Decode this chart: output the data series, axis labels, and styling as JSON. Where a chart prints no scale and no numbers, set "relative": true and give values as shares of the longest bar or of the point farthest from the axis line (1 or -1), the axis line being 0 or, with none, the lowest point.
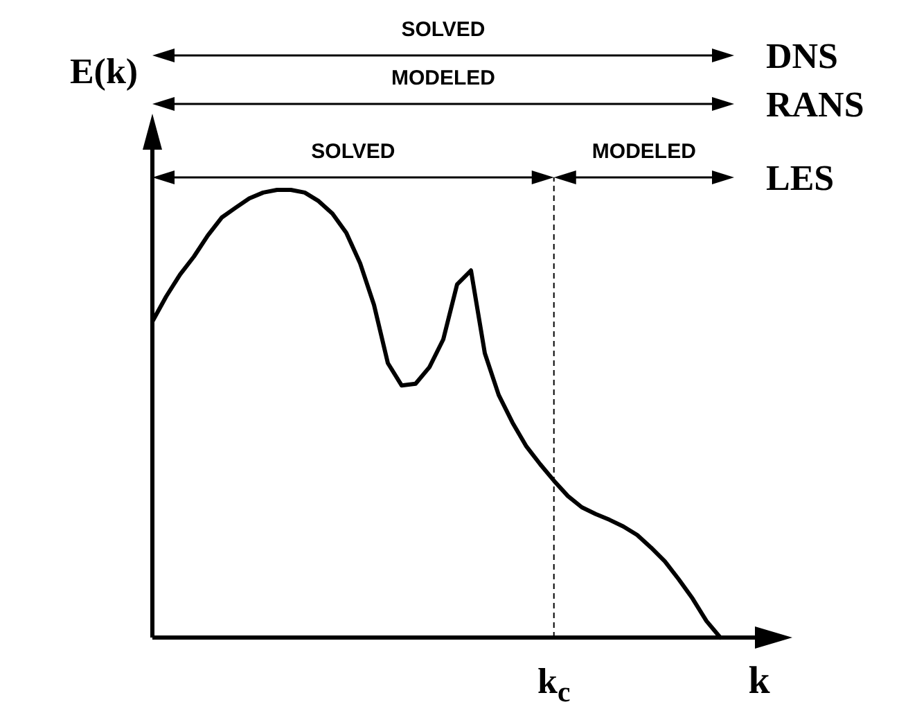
{
  "chart_data": {
    "type": "line",
    "relative": true,
    "xlabel": "k",
    "ylabel": "E(k)",
    "categories": [
      null,
      null,
      null,
      null,
      null,
      null,
      null,
      null,
      null,
      null,
      null,
      null,
      null,
      null,
      null,
      null,
      null,
      null,
      null,
      null,
      null,
      null,
      null,
      null,
      null,
      null,
      null,
      null,
      null,
      null,
      null,
      null,
      null,
      null,
      null,
      null,
      null,
      null,
      null,
      null,
      null,
      null
    ],
    "series": [
      {
        "color": "#000000",
        "values": [
          0.706,
          0.762,
          0.811,
          0.851,
          0.898,
          0.938,
          0.96,
          0.981,
          0.994,
          1,
          1,
          0.994,
          0.975,
          0.947,
          0.904,
          0.836,
          0.743,
          0.613,
          0.563,
          0.567,
          0.604,
          0.666,
          0.789,
          0.82,
          0.635,
          0.542,
          0.48,
          0.427,
          0.387,
          0.35,
          0.316,
          0.291,
          0.276,
          0.263,
          0.248,
          0.229,
          0.201,
          0.17,
          0.13,
          0.087,
          0.037,
          0
        ]
      }
    ],
    "annotations": [
      "SOLVED",
      "MODELED",
      "SOLVED",
      "MODELED",
      "DNS",
      "RANS",
      "LES",
      "k$_{c}$"
    ],
    "line_style": "solid"
  }
}
